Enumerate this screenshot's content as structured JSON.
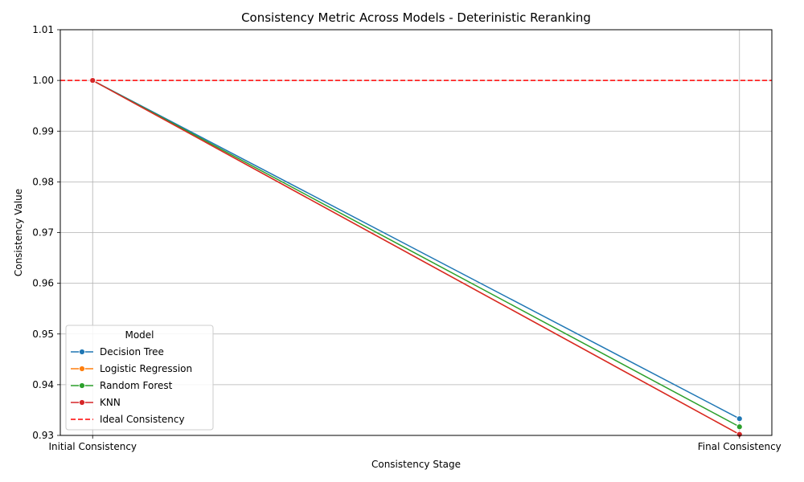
{
  "chart_data": {
    "type": "line",
    "title": "Consistency Metric Across Models - Deterinistic Reranking",
    "xlabel": "Consistency Stage",
    "ylabel": "Consistency Value",
    "categories": [
      "Initial Consistency",
      "Final Consistency"
    ],
    "ylim": [
      0.93,
      1.01
    ],
    "yticks": [
      "0.93",
      "0.94",
      "0.95",
      "0.96",
      "0.97",
      "0.98",
      "0.99",
      "1.00",
      "1.01"
    ],
    "grid": true,
    "legend": {
      "title": "Model",
      "placement": "lower-left"
    },
    "series": [
      {
        "name": "Decision Tree",
        "color": "#1f77b4",
        "values": [
          1.0,
          0.9333
        ]
      },
      {
        "name": "Logistic Regression",
        "color": "#ff7f0e",
        "values": [
          1.0,
          0.9302
        ]
      },
      {
        "name": "Random Forest",
        "color": "#2ca02c",
        "values": [
          1.0,
          0.9317
        ]
      },
      {
        "name": "KNN",
        "color": "#d62728",
        "values": [
          1.0,
          0.9302
        ]
      }
    ],
    "reference_line": {
      "name": "Ideal Consistency",
      "value": 1.0,
      "color": "#ff0000",
      "style": "dashed"
    }
  }
}
